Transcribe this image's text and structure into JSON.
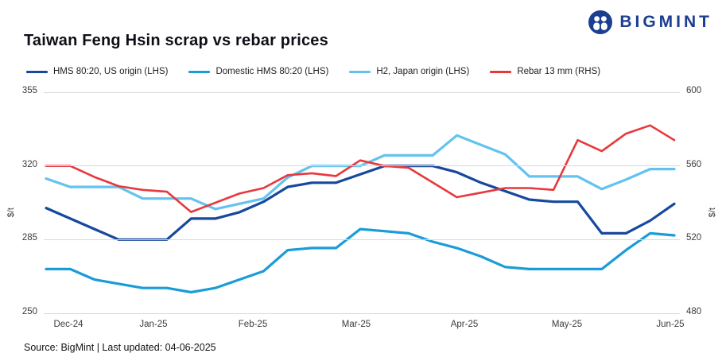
{
  "logo": {
    "text": "BIGMINT"
  },
  "title": "Taiwan Feng Hsin scrap vs rebar prices",
  "footer": {
    "source": "Source: BigMint |  Last updated: 04-06-2025"
  },
  "colors": {
    "grid": "#d9d9d9",
    "logo_navy": "#1b3e90",
    "tick_text": "#3c3c3c"
  },
  "chart_data": {
    "type": "line",
    "title": "Taiwan Feng Hsin scrap vs rebar prices",
    "grid": "horizontal-only",
    "legend_position": "top-left",
    "x_tick_labels": [
      "Dec-24",
      "Jan-25",
      "Feb-25",
      "Mar-25",
      "Apr-25",
      "May-25",
      "Jun-25"
    ],
    "points_per_series": 27,
    "frequency": "weekly",
    "left_axis": {
      "unit": "$/t",
      "ticks": [
        355,
        320,
        285,
        250
      ],
      "min": 250,
      "max": 355
    },
    "right_axis": {
      "unit": "$/t",
      "ticks": [
        600,
        560,
        520,
        480
      ],
      "min": 480,
      "max": 600
    },
    "series": [
      {
        "id": "hms-us",
        "name": "HMS 80:20, US origin (LHS)",
        "axis": "left",
        "color": "#16489d",
        "values": [
          300,
          295,
          290,
          285,
          285,
          285,
          295,
          295,
          298,
          303,
          310,
          312,
          312,
          316,
          320,
          320,
          320,
          317,
          312,
          308,
          304,
          303,
          303,
          288,
          288,
          294,
          302
        ]
      },
      {
        "id": "domestic-hms",
        "name": "Domestic HMS 80:20 (LHS)",
        "axis": "left",
        "color": "#1a9cd8",
        "values": [
          271,
          271,
          266,
          264,
          262,
          262,
          260,
          262,
          266,
          270,
          280,
          281,
          281,
          290,
          289,
          288,
          284,
          281,
          277,
          272,
          271,
          271,
          271,
          271,
          280,
          288,
          287
        ]
      },
      {
        "id": "h2-japan",
        "name": "H2, Japan origin (LHS)",
        "axis": "left",
        "color": "#63c3ee",
        "values": [
          314,
          310,
          310,
          310,
          304.5,
          304.5,
          304.5,
          299.5,
          302,
          304.5,
          314.5,
          320,
          320,
          320,
          325,
          325,
          325,
          334.5,
          330,
          325.5,
          315,
          315,
          315,
          309,
          313.5,
          318.5,
          318.5
        ]
      },
      {
        "id": "rebar-13mm",
        "name": "Rebar 13 mm (RHS)",
        "axis": "right",
        "color": "#e8383c",
        "values": [
          560,
          560,
          554,
          549,
          547,
          546,
          535,
          540,
          545,
          548,
          555,
          556,
          554.5,
          563,
          560,
          559,
          551,
          543,
          545.5,
          548,
          548,
          547,
          574,
          568,
          577.5,
          582,
          574
        ]
      }
    ]
  }
}
